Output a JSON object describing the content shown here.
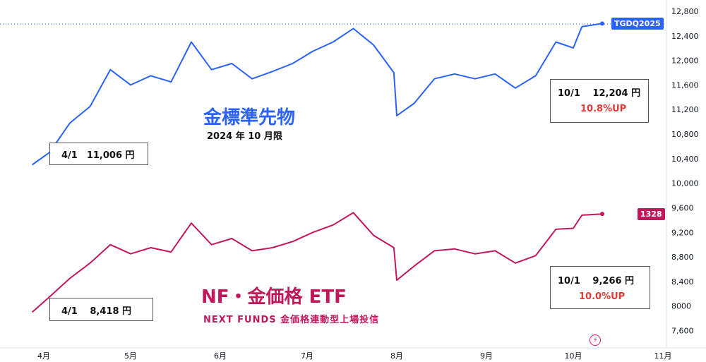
{
  "colors": {
    "gold": "#2962ff",
    "etf": "#c2185b",
    "axis": "#e0e3eb"
  },
  "chart_data": [
    {
      "type": "line",
      "title": "金標準先物",
      "subtitle": "2024 年 10 月限",
      "badge": "TGDQ2025",
      "x": [
        "3/28",
        "4/3",
        "4/10",
        "4/17",
        "4/24",
        "5/1",
        "5/8",
        "5/15",
        "5/22",
        "5/29",
        "6/5",
        "6/12",
        "6/19",
        "6/26",
        "7/3",
        "7/10",
        "7/17",
        "7/24",
        "7/31",
        "8/1",
        "8/7",
        "8/14",
        "8/21",
        "8/28",
        "9/4",
        "9/11",
        "9/18",
        "9/25",
        "10/1",
        "10/4",
        "10/11"
      ],
      "series": [
        {
          "values": [
            10300,
            10500,
            10980,
            11250,
            11850,
            11600,
            11750,
            11650,
            12300,
            11850,
            11950,
            11700,
            11820,
            11950,
            12150,
            12300,
            12520,
            12250,
            11800,
            11100,
            11300,
            11700,
            11780,
            11700,
            11780,
            11550,
            11750,
            12300,
            12204,
            12550,
            12600
          ]
        }
      ],
      "ylim": [
        7300,
        12950
      ]
    },
    {
      "type": "line",
      "title": "NF・金価格 ETF",
      "subtitle": "NEXT FUNDS 金価格連動型上場投信",
      "badge": "1328",
      "x": [
        "3/28",
        "4/3",
        "4/10",
        "4/17",
        "4/24",
        "5/1",
        "5/8",
        "5/15",
        "5/22",
        "5/29",
        "6/5",
        "6/12",
        "6/19",
        "6/26",
        "7/3",
        "7/10",
        "7/17",
        "7/24",
        "7/31",
        "8/1",
        "8/7",
        "8/14",
        "8/21",
        "8/28",
        "9/4",
        "9/11",
        "9/18",
        "9/25",
        "10/1",
        "10/4",
        "10/11"
      ],
      "series": [
        {
          "values": [
            7900,
            8150,
            8450,
            8700,
            9000,
            8850,
            8950,
            8880,
            9350,
            9000,
            9100,
            8900,
            8950,
            9050,
            9200,
            9320,
            9520,
            9150,
            8950,
            8420,
            8650,
            8900,
            8930,
            8850,
            8900,
            8700,
            8820,
            9250,
            9266,
            9480,
            9500
          ]
        }
      ],
      "ylim": [
        7300,
        12950
      ]
    }
  ],
  "y_ticks": [
    "12,800",
    "12,400",
    "12,000",
    "11,600",
    "11,200",
    "10,800",
    "10,400",
    "10,000",
    "9,600",
    "9,200",
    "8,800",
    "8,400",
    "8000",
    "7,600"
  ],
  "y_tick_values": [
    12800,
    12400,
    12000,
    11600,
    11200,
    10800,
    10400,
    10000,
    9600,
    9200,
    8800,
    8400,
    8000,
    7600
  ],
  "x_ticks": [
    "4月",
    "5月",
    "6月",
    "7月",
    "8月",
    "9月",
    "10月",
    "11月"
  ],
  "x_tick_dates": [
    "4/1",
    "5/1",
    "6/1",
    "7/1",
    "8/1",
    "9/1",
    "10/1",
    "11/1"
  ],
  "annotations": {
    "gold_start": "4/1　11,006 円",
    "gold_end": "10/1　 12,204 円",
    "gold_pct": "10.8%UP",
    "etf_start": "4/1　 8,418 円",
    "etf_end": "10/1　 9,266 円",
    "etf_pct": "10.0%UP"
  }
}
